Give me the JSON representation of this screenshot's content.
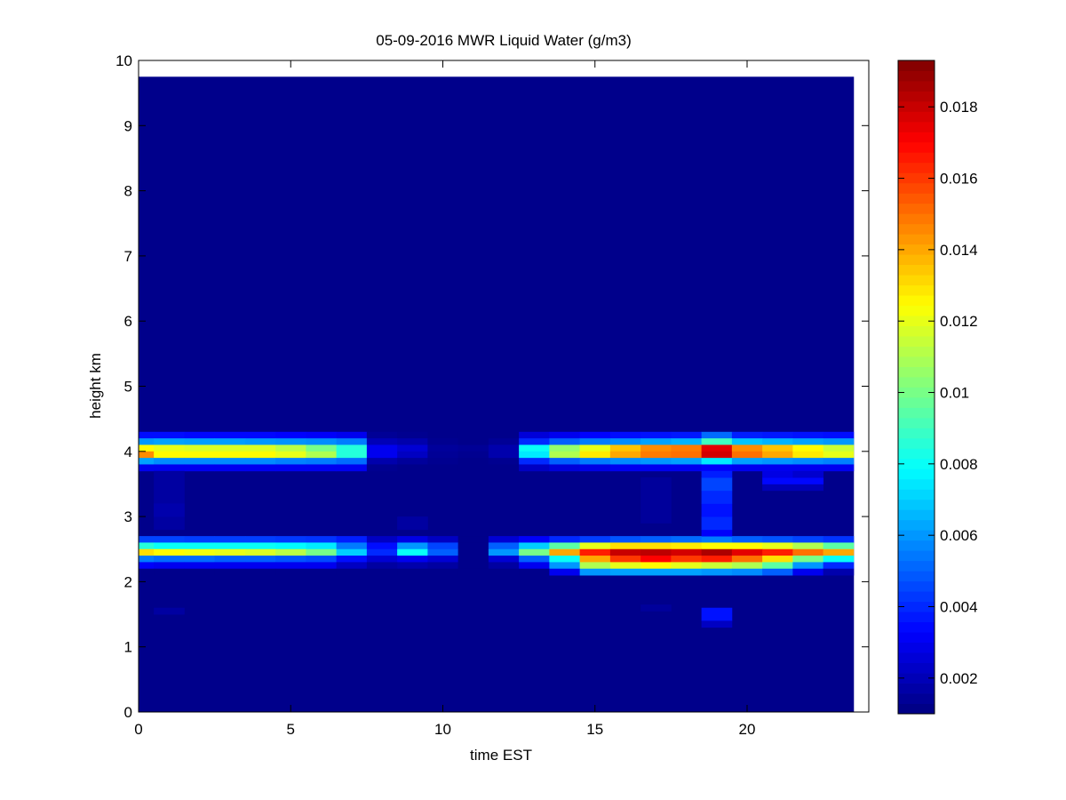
{
  "chart_data": {
    "type": "heatmap",
    "title": "05-09-2016 MWR Liquid Water (g/m3)",
    "xlabel": "time EST",
    "ylabel": "height km",
    "xlim": [
      0,
      24
    ],
    "ylim": [
      0,
      10
    ],
    "xticks": [
      0,
      5,
      10,
      15,
      20
    ],
    "yticks": [
      0,
      1,
      2,
      3,
      4,
      5,
      6,
      7,
      8,
      9,
      10
    ],
    "colorbar": {
      "range": [
        0.001,
        0.0193
      ],
      "ticks": [
        0.002,
        0.004,
        0.006,
        0.008,
        0.01,
        0.012,
        0.014,
        0.016,
        0.018
      ],
      "tick_labels": [
        "0.002",
        "0.004",
        "0.006",
        "0.008",
        "0.01",
        "0.012",
        "0.014",
        "0.016",
        "0.018"
      ]
    },
    "grid": false,
    "background_value": 0.0012,
    "data_extent": {
      "time": [
        0,
        23.5
      ],
      "height": [
        0,
        9.75
      ]
    },
    "time_bins": [
      0,
      0.5,
      1.5,
      2.5,
      3.5,
      4.5,
      5.5,
      6.5,
      7.5,
      8.5,
      9.5,
      10.5,
      11.5,
      12.5,
      13.5,
      14.5,
      15.5,
      16.5,
      17.5,
      18.5,
      19.5,
      20.5,
      21.5,
      22.5,
      23.5
    ],
    "height_bins": [
      1.3,
      1.4,
      1.5,
      1.6,
      2.05,
      2.2,
      2.3,
      2.4,
      2.5,
      2.6,
      2.7,
      2.8,
      3.0,
      3.2,
      3.4,
      3.5,
      3.6,
      3.7,
      3.8,
      3.9,
      4.0,
      4.1,
      4.2,
      4.3
    ],
    "band_rows": [
      {
        "height": 4.25,
        "values": [
          0.0035,
          0.0035,
          0.0034,
          0.0034,
          0.0034,
          0.0033,
          0.0032,
          0.003,
          0.0014,
          0.0013,
          0.0012,
          0.0012,
          0.0012,
          0.0026,
          0.003,
          0.0033,
          0.0035,
          0.0036,
          0.0037,
          0.0052,
          0.0038,
          0.0037,
          0.0036,
          0.0035
        ]
      },
      {
        "height": 4.15,
        "values": [
          0.006,
          0.0062,
          0.0061,
          0.0061,
          0.006,
          0.0059,
          0.0058,
          0.0055,
          0.002,
          0.0018,
          0.0013,
          0.0012,
          0.0014,
          0.004,
          0.005,
          0.0055,
          0.0058,
          0.0062,
          0.0065,
          0.009,
          0.0068,
          0.0065,
          0.0062,
          0.006
        ]
      },
      {
        "height": 4.05,
        "values": [
          0.0125,
          0.012,
          0.0118,
          0.0118,
          0.0118,
          0.0112,
          0.01,
          0.0085,
          0.003,
          0.0025,
          0.0015,
          0.0014,
          0.0018,
          0.008,
          0.0105,
          0.012,
          0.0135,
          0.0145,
          0.0148,
          0.0175,
          0.0145,
          0.0135,
          0.0125,
          0.0115
        ]
      },
      {
        "height": 3.95,
        "values": [
          0.0145,
          0.0125,
          0.0125,
          0.0125,
          0.0125,
          0.012,
          0.011,
          0.0085,
          0.003,
          0.0022,
          0.0014,
          0.0013,
          0.0018,
          0.0075,
          0.011,
          0.0128,
          0.014,
          0.0148,
          0.015,
          0.0178,
          0.015,
          0.014,
          0.0128,
          0.012
        ]
      },
      {
        "height": 3.85,
        "values": [
          0.0062,
          0.0058,
          0.0058,
          0.0058,
          0.0058,
          0.0056,
          0.0055,
          0.0052,
          0.0018,
          0.0015,
          0.0013,
          0.0012,
          0.0013,
          0.004,
          0.005,
          0.0055,
          0.0058,
          0.006,
          0.0062,
          0.0075,
          0.0062,
          0.006,
          0.0058,
          0.0056
        ]
      },
      {
        "height": 3.75,
        "values": [
          0.003,
          0.003,
          0.003,
          0.003,
          0.003,
          0.003,
          0.003,
          0.003,
          0.0013,
          0.0012,
          0.0012,
          0.0012,
          0.0012,
          0.0022,
          0.0026,
          0.0028,
          0.003,
          0.003,
          0.003,
          0.0032,
          0.003,
          0.003,
          0.003,
          0.003
        ]
      },
      {
        "height": 2.65,
        "values": [
          0.0045,
          0.0045,
          0.0044,
          0.0044,
          0.0044,
          0.0043,
          0.0042,
          0.0038,
          0.0022,
          0.0028,
          0.0022,
          0.0012,
          0.0025,
          0.0032,
          0.004,
          0.0044,
          0.0048,
          0.005,
          0.0052,
          0.0055,
          0.005,
          0.0048,
          0.0045,
          0.0042
        ]
      },
      {
        "height": 2.55,
        "values": [
          0.0085,
          0.008,
          0.008,
          0.008,
          0.008,
          0.0078,
          0.0075,
          0.0055,
          0.0035,
          0.006,
          0.0045,
          0.0012,
          0.005,
          0.007,
          0.0095,
          0.012,
          0.013,
          0.013,
          0.0128,
          0.0125,
          0.0125,
          0.012,
          0.011,
          0.0095
        ]
      },
      {
        "height": 2.45,
        "values": [
          0.013,
          0.0125,
          0.0122,
          0.012,
          0.0118,
          0.0112,
          0.01,
          0.007,
          0.004,
          0.008,
          0.005,
          0.0012,
          0.006,
          0.01,
          0.014,
          0.0165,
          0.018,
          0.0182,
          0.0178,
          0.0185,
          0.0175,
          0.0165,
          0.015,
          0.014
        ]
      },
      {
        "height": 2.35,
        "values": [
          0.0055,
          0.0052,
          0.0052,
          0.005,
          0.005,
          0.0048,
          0.0046,
          0.0035,
          0.0025,
          0.003,
          0.0025,
          0.0012,
          0.0025,
          0.005,
          0.008,
          0.014,
          0.016,
          0.017,
          0.016,
          0.0165,
          0.015,
          0.013,
          0.01,
          0.008
        ]
      },
      {
        "height": 2.25,
        "values": [
          0.0032,
          0.003,
          0.003,
          0.003,
          0.003,
          0.003,
          0.003,
          0.0022,
          0.0016,
          0.0018,
          0.0016,
          0.0012,
          0.0016,
          0.003,
          0.006,
          0.011,
          0.012,
          0.0125,
          0.012,
          0.0115,
          0.011,
          0.0095,
          0.006,
          0.004
        ]
      },
      {
        "height": 2.15,
        "values": [
          0.0012,
          0.0012,
          0.0012,
          0.0012,
          0.0012,
          0.0012,
          0.0012,
          0.0012,
          0.0012,
          0.0012,
          0.0012,
          0.0012,
          0.0012,
          0.0012,
          0.003,
          0.006,
          0.0062,
          0.0062,
          0.0062,
          0.006,
          0.0058,
          0.005,
          0.003,
          0.0018
        ]
      }
    ],
    "patches": [
      {
        "t0": 0.5,
        "t1": 1.5,
        "h0": 2.8,
        "h1": 3.7,
        "value": 0.0016
      },
      {
        "t0": 0.5,
        "t1": 1.5,
        "h0": 3.0,
        "h1": 3.2,
        "value": 0.0018
      },
      {
        "t0": 0.5,
        "t1": 1.5,
        "h0": 1.5,
        "h1": 1.6,
        "value": 0.0016
      },
      {
        "t0": 8.5,
        "t1": 9.5,
        "h0": 2.8,
        "h1": 3.0,
        "value": 0.0016
      },
      {
        "t0": 16.5,
        "t1": 17.5,
        "h0": 2.9,
        "h1": 3.6,
        "value": 0.0015
      },
      {
        "t0": 16.5,
        "t1": 17.5,
        "h0": 1.55,
        "h1": 1.65,
        "value": 0.0015
      },
      {
        "t0": 18.5,
        "t1": 19.5,
        "h0": 2.7,
        "h1": 2.8,
        "value": 0.0032
      },
      {
        "t0": 18.5,
        "t1": 19.5,
        "h0": 2.8,
        "h1": 3.0,
        "value": 0.004
      },
      {
        "t0": 18.5,
        "t1": 19.5,
        "h0": 3.0,
        "h1": 3.2,
        "value": 0.0036
      },
      {
        "t0": 18.5,
        "t1": 19.5,
        "h0": 3.2,
        "h1": 3.4,
        "value": 0.004
      },
      {
        "t0": 18.5,
        "t1": 19.5,
        "h0": 3.4,
        "h1": 3.6,
        "value": 0.0045
      },
      {
        "t0": 18.5,
        "t1": 19.5,
        "h0": 3.6,
        "h1": 3.7,
        "value": 0.0038
      },
      {
        "t0": 18.5,
        "t1": 19.5,
        "h0": 1.4,
        "h1": 1.6,
        "value": 0.0036
      },
      {
        "t0": 18.5,
        "t1": 19.5,
        "h0": 1.3,
        "h1": 1.4,
        "value": 0.0022
      },
      {
        "t0": 20.5,
        "t1": 22.5,
        "h0": 3.4,
        "h1": 3.5,
        "value": 0.002
      },
      {
        "t0": 20.5,
        "t1": 22.5,
        "h0": 3.5,
        "h1": 3.6,
        "value": 0.0034
      },
      {
        "t0": 20.5,
        "t1": 21.5,
        "h0": 3.6,
        "h1": 3.7,
        "value": 0.0028
      },
      {
        "t0": 21.5,
        "t1": 22.5,
        "h0": 3.6,
        "h1": 3.7,
        "value": 0.0024
      }
    ]
  }
}
